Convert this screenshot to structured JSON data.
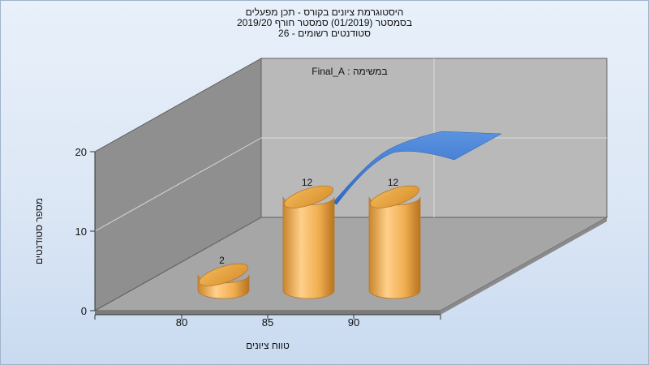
{
  "chart_data": {
    "type": "bar",
    "title_lines": [
      "היסטוגרמת ציונים בקורס - תכן מפעלים",
      "בסמסטר (01/2019) סמסטר חורף 2019/20",
      "סטודנטים רשומים - 26"
    ],
    "legend_label": "במשימה : Final_A",
    "xlabel": "טווח ציונים",
    "ylabel": "מספר סטודנטים",
    "ylim": [
      0,
      20
    ],
    "y_ticks": [
      "0",
      "10",
      "20"
    ],
    "categories": [
      "80",
      "85",
      "90"
    ],
    "series": [
      {
        "name": "Final_A",
        "values": [
          2,
          12,
          12
        ],
        "data_labels": [
          "2",
          "12",
          "12"
        ],
        "color": "#e8a040"
      }
    ],
    "trend_line": {
      "color": "#3a7bd5"
    },
    "grid": true,
    "legend_position": "top"
  }
}
